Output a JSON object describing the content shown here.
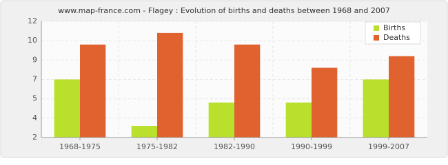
{
  "chart_data": {
    "type": "bar",
    "title": "www.map-france.com - Flagey : Evolution of births and deaths between 1968 and 2007",
    "categories": [
      "1968-1975",
      "1975-1982",
      "1982-1990",
      "1990-1999",
      "1999-2007"
    ],
    "series": [
      {
        "name": "Births",
        "color": "#b8e02c",
        "values": [
          7,
          3,
          5,
          5,
          7
        ]
      },
      {
        "name": "Deaths",
        "color": "#e0622e",
        "values": [
          10,
          11,
          10,
          8,
          9
        ]
      }
    ],
    "ylim": [
      2,
      12
    ],
    "yticks": [
      2,
      {
        "value": 3.67,
        "label": "4"
      },
      {
        "value": 5.33,
        "label": "5"
      },
      7,
      {
        "value": 8.67,
        "label": "9"
      },
      {
        "value": 10.33,
        "label": "10"
      },
      12
    ],
    "grid": true,
    "legend": "top-right"
  }
}
